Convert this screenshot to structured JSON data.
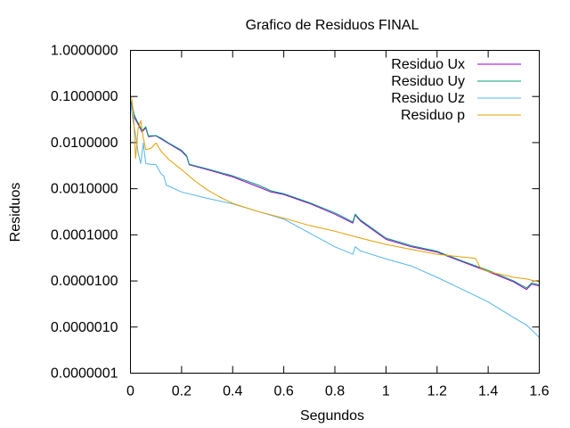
{
  "chart_data": {
    "type": "line",
    "title": "Grafico de Residuos FINAL",
    "xlabel": "Segundos",
    "ylabel": "Residuos",
    "xlim": [
      0,
      1.6
    ],
    "ylim": [
      1e-07,
      1
    ],
    "yscale": "log",
    "grid": false,
    "legend_position": "top-right",
    "x_ticks": [
      0,
      0.2,
      0.4,
      0.6,
      0.8,
      1,
      1.2,
      1.4,
      1.6
    ],
    "x_tick_labels": [
      "0",
      "0.2",
      "0.4",
      "0.6",
      "0.8",
      "1",
      "1.2",
      "1.4",
      "1.6"
    ],
    "y_ticks": [
      1e-07,
      1e-06,
      1e-05,
      0.0001,
      0.001,
      0.01,
      0.1,
      1
    ],
    "y_tick_labels": [
      "0.0000001",
      "0.0000010",
      "0.0000100",
      "0.0001000",
      "0.0010000",
      "0.0100000",
      "0.1000000",
      "1.0000000"
    ],
    "series": [
      {
        "name": "Residuo Ux",
        "color": "#9400d3",
        "x": [
          0.0,
          0.008,
          0.015,
          0.025,
          0.035,
          0.045,
          0.06,
          0.07,
          0.1,
          0.12,
          0.15,
          0.2,
          0.22,
          0.23,
          0.3,
          0.4,
          0.5,
          0.55,
          0.6,
          0.7,
          0.8,
          0.87,
          0.88,
          0.9,
          1.0,
          1.1,
          1.2,
          1.3,
          1.4,
          1.5,
          1.55,
          1.57,
          1.6
        ],
        "y": [
          0.08,
          0.055,
          0.035,
          0.028,
          0.022,
          0.017,
          0.021,
          0.0135,
          0.014,
          0.012,
          0.0095,
          0.0065,
          0.005,
          0.0033,
          0.0026,
          0.0018,
          0.0011,
          0.00085,
          0.00075,
          0.00048,
          0.00028,
          0.00018,
          0.00027,
          0.0002,
          8e-05,
          5.5e-05,
          4.2e-05,
          2.6e-05,
          1.6e-05,
          9.5e-06,
          6.5e-06,
          8.5e-06,
          7.8e-06
        ]
      },
      {
        "name": "Residuo Uy",
        "color": "#009e73",
        "x": [
          0.0,
          0.008,
          0.015,
          0.025,
          0.035,
          0.045,
          0.06,
          0.07,
          0.1,
          0.12,
          0.15,
          0.2,
          0.22,
          0.23,
          0.3,
          0.4,
          0.5,
          0.55,
          0.6,
          0.7,
          0.8,
          0.87,
          0.88,
          0.9,
          1.0,
          1.1,
          1.2,
          1.3,
          1.4,
          1.5,
          1.55,
          1.57,
          1.6
        ],
        "y": [
          0.085,
          0.06,
          0.04,
          0.03,
          0.024,
          0.018,
          0.022,
          0.014,
          0.0142,
          0.0125,
          0.0098,
          0.0068,
          0.0052,
          0.0034,
          0.0027,
          0.0019,
          0.0012,
          0.0009,
          0.00078,
          0.0005,
          0.0003,
          0.00019,
          0.00028,
          0.00021,
          8.5e-05,
          5.8e-05,
          4.4e-05,
          2.7e-05,
          1.7e-05,
          1e-05,
          7e-06,
          9e-06,
          8.2e-06
        ]
      },
      {
        "name": "Residuo Uz",
        "color": "#56b4e9",
        "x": [
          0.0,
          0.01,
          0.02,
          0.03,
          0.04,
          0.05,
          0.06,
          0.08,
          0.1,
          0.12,
          0.13,
          0.14,
          0.2,
          0.3,
          0.4,
          0.5,
          0.6,
          0.7,
          0.8,
          0.87,
          0.88,
          0.9,
          1.0,
          1.1,
          1.2,
          1.3,
          1.4,
          1.5,
          1.55,
          1.6
        ],
        "y": [
          0.075,
          0.03,
          0.015,
          0.006,
          0.0035,
          0.0098,
          0.0035,
          0.0034,
          0.0033,
          0.0021,
          0.0019,
          0.0012,
          0.00085,
          0.00062,
          0.00047,
          0.00032,
          0.00022,
          0.00011,
          5.5e-05,
          3.8e-05,
          5.5e-05,
          4.5e-05,
          3e-05,
          2.1e-05,
          1.2e-05,
          6.5e-06,
          3.5e-06,
          1.6e-06,
          1.1e-06,
          6e-07
        ]
      },
      {
        "name": "Residuo p",
        "color": "#e69f00",
        "x": [
          0.0,
          0.005,
          0.012,
          0.02,
          0.03,
          0.04,
          0.05,
          0.06,
          0.08,
          0.1,
          0.12,
          0.15,
          0.2,
          0.22,
          0.25,
          0.3,
          0.35,
          0.4,
          0.5,
          0.6,
          0.7,
          0.8,
          0.9,
          1.0,
          1.1,
          1.2,
          1.3,
          1.35,
          1.37,
          1.4,
          1.5,
          1.55,
          1.6
        ],
        "y": [
          0.1,
          0.09,
          0.04,
          0.0045,
          0.02,
          0.03,
          0.013,
          0.007,
          0.0075,
          0.0098,
          0.0065,
          0.0043,
          0.0026,
          0.0021,
          0.0015,
          0.00095,
          0.00066,
          0.00048,
          0.00032,
          0.00023,
          0.00016,
          0.00012,
          8.5e-05,
          6.2e-05,
          4.8e-05,
          3.8e-05,
          3.3e-05,
          3.1e-05,
          1.9e-05,
          1.6e-05,
          1.2e-05,
          1.1e-05,
          9.5e-06
        ]
      }
    ]
  }
}
